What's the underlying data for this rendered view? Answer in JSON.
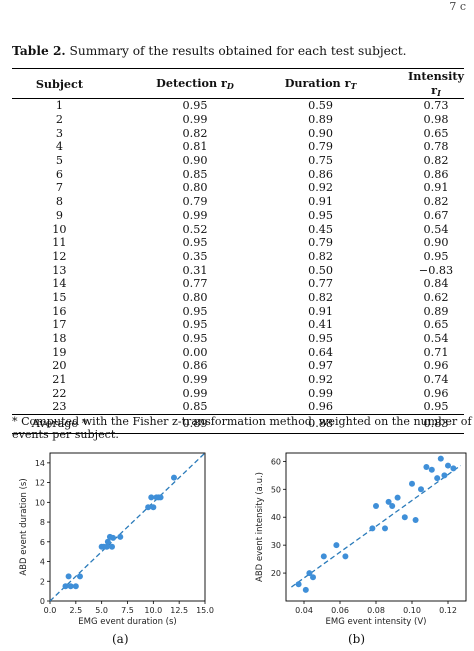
{
  "page_number": "7 c",
  "table": {
    "caption_label": "Table 2.",
    "caption_text": " Summary of the results obtained for each test subject.",
    "headers": {
      "subject": "Subject",
      "detection": "Detection r",
      "detection_sub": "D",
      "duration": "Duration r",
      "duration_sub": "T",
      "intensity": "Intensity r",
      "intensity_sub": "I"
    },
    "rows": [
      [
        "1",
        "0.95",
        "0.59",
        "0.73"
      ],
      [
        "2",
        "0.99",
        "0.89",
        "0.98"
      ],
      [
        "3",
        "0.82",
        "0.90",
        "0.65"
      ],
      [
        "4",
        "0.81",
        "0.79",
        "0.78"
      ],
      [
        "5",
        "0.90",
        "0.75",
        "0.82"
      ],
      [
        "6",
        "0.85",
        "0.86",
        "0.86"
      ],
      [
        "7",
        "0.80",
        "0.92",
        "0.91"
      ],
      [
        "8",
        "0.79",
        "0.91",
        "0.82"
      ],
      [
        "9",
        "0.99",
        "0.95",
        "0.67"
      ],
      [
        "10",
        "0.52",
        "0.45",
        "0.54"
      ],
      [
        "11",
        "0.95",
        "0.79",
        "0.90"
      ],
      [
        "12",
        "0.35",
        "0.82",
        "0.95"
      ],
      [
        "13",
        "0.31",
        "0.50",
        "−0.83"
      ],
      [
        "14",
        "0.77",
        "0.77",
        "0.84"
      ],
      [
        "15",
        "0.80",
        "0.82",
        "0.62"
      ],
      [
        "16",
        "0.95",
        "0.91",
        "0.89"
      ],
      [
        "17",
        "0.95",
        "0.41",
        "0.65"
      ],
      [
        "18",
        "0.95",
        "0.95",
        "0.54"
      ],
      [
        "19",
        "0.00",
        "0.64",
        "0.71"
      ],
      [
        "20",
        "0.86",
        "0.97",
        "0.96"
      ],
      [
        "21",
        "0.99",
        "0.92",
        "0.74"
      ],
      [
        "22",
        "0.99",
        "0.99",
        "0.96"
      ],
      [
        "23",
        "0.85",
        "0.96",
        "0.95"
      ]
    ],
    "average": [
      "Average *",
      "0.89",
      "0.88",
      "0.83"
    ],
    "footnote": "* Computed with the Fisher z-transformation method, weighted on the number of events per subject."
  },
  "chart_data": [
    {
      "type": "scatter",
      "panel": "(a)",
      "xlabel": "EMG event duration (s)",
      "ylabel": "ABD event duration (s)",
      "xlim": [
        0,
        15
      ],
      "ylim": [
        0,
        15
      ],
      "xticks": [
        "0.0",
        "2.5",
        "5.0",
        "7.5",
        "10.0",
        "12.5",
        "15.0"
      ],
      "yticks": [
        "0",
        "2",
        "4",
        "6",
        "8",
        "10",
        "12",
        "14"
      ],
      "xtick_values": [
        0,
        2.5,
        5,
        7.5,
        10,
        12.5,
        15
      ],
      "ytick_values": [
        0,
        2,
        4,
        6,
        8,
        10,
        12,
        14
      ],
      "trend": [
        [
          0,
          0
        ],
        [
          15,
          15
        ]
      ],
      "points": [
        [
          1.5,
          1.5
        ],
        [
          1.8,
          2.5
        ],
        [
          2.0,
          1.5
        ],
        [
          2.5,
          1.5
        ],
        [
          2.9,
          2.5
        ],
        [
          5.0,
          5.5
        ],
        [
          5.2,
          5.5
        ],
        [
          5.5,
          5.5
        ],
        [
          5.6,
          6.0
        ],
        [
          5.8,
          6.5
        ],
        [
          6.0,
          5.5
        ],
        [
          6.1,
          6.4
        ],
        [
          6.8,
          6.5
        ],
        [
          9.5,
          9.5
        ],
        [
          9.8,
          10.5
        ],
        [
          10.0,
          9.5
        ],
        [
          10.3,
          10.5
        ],
        [
          10.5,
          10.5
        ],
        [
          10.7,
          10.5
        ],
        [
          12.0,
          12.5
        ]
      ]
    },
    {
      "type": "scatter",
      "panel": "(b)",
      "xlabel": "EMG event intensity (V)",
      "ylabel": "ABD event intensity (a.u.)",
      "xlim": [
        0.03,
        0.13
      ],
      "ylim": [
        10,
        63
      ],
      "xticks": [
        "0.04",
        "0.06",
        "0.08",
        "0.10",
        "0.12"
      ],
      "yticks": [
        "20",
        "30",
        "40",
        "50",
        "60"
      ],
      "xtick_values": [
        0.04,
        0.06,
        0.08,
        0.1,
        0.12
      ],
      "ytick_values": [
        20,
        30,
        40,
        50,
        60
      ],
      "trend": [
        [
          0.033,
          15
        ],
        [
          0.127,
          58.5
        ]
      ],
      "points": [
        [
          0.037,
          16
        ],
        [
          0.041,
          14
        ],
        [
          0.043,
          20
        ],
        [
          0.045,
          18.5
        ],
        [
          0.051,
          26
        ],
        [
          0.058,
          30
        ],
        [
          0.063,
          26
        ],
        [
          0.078,
          36
        ],
        [
          0.08,
          44
        ],
        [
          0.085,
          36
        ],
        [
          0.087,
          45.5
        ],
        [
          0.089,
          44
        ],
        [
          0.092,
          47
        ],
        [
          0.096,
          40
        ],
        [
          0.1,
          52
        ],
        [
          0.102,
          39
        ],
        [
          0.105,
          50
        ],
        [
          0.108,
          58
        ],
        [
          0.111,
          57
        ],
        [
          0.114,
          54
        ],
        [
          0.116,
          61
        ],
        [
          0.118,
          55
        ],
        [
          0.12,
          58.5
        ],
        [
          0.123,
          57.5
        ]
      ]
    }
  ]
}
